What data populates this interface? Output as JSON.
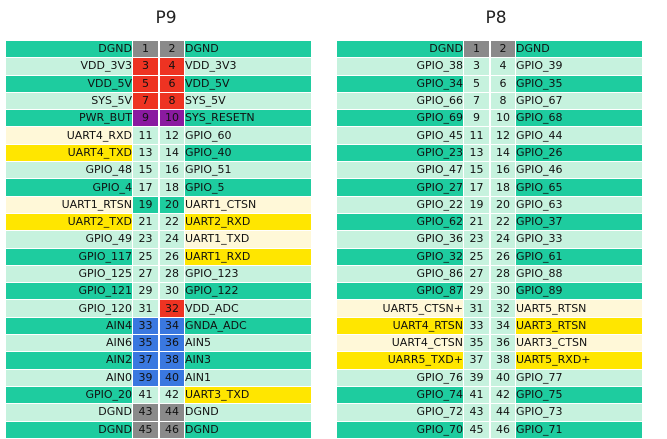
{
  "colors": {
    "teal": "#1ecc9f",
    "mint": "#c6f2de",
    "cream": "#fff8d8",
    "yellow": "#ffe600",
    "red": "#ee3322",
    "purple": "#8a1aa0",
    "blue": "#3a78e0",
    "gray": "#8a8a8a"
  },
  "p9": {
    "title": "P9",
    "rows": [
      {
        "l": "DGND",
        "a": "1",
        "b": "2",
        "r": "DGND",
        "lc": "teal",
        "ac": "gray",
        "bc": "gray",
        "rc": "teal"
      },
      {
        "l": "VDD_3V3",
        "a": "3",
        "b": "4",
        "r": "VDD_3V3",
        "lc": "mint",
        "ac": "red",
        "bc": "red",
        "rc": "mint"
      },
      {
        "l": "VDD_5V",
        "a": "5",
        "b": "6",
        "r": "VDD_5V",
        "lc": "teal",
        "ac": "red",
        "bc": "red",
        "rc": "teal"
      },
      {
        "l": "SYS_5V",
        "a": "7",
        "b": "8",
        "r": "SYS_5V",
        "lc": "mint",
        "ac": "red",
        "bc": "red",
        "rc": "mint"
      },
      {
        "l": "PWR_BUT",
        "a": "9",
        "b": "10",
        "r": "SYS_RESETN",
        "lc": "teal",
        "ac": "purple",
        "bc": "purple",
        "rc": "teal"
      },
      {
        "l": "UART4_RXD",
        "a": "11",
        "b": "12",
        "r": "GPIO_60",
        "lc": "cream",
        "ac": "mint",
        "bc": "mint",
        "rc": "mint"
      },
      {
        "l": "UART4_TXD",
        "a": "13",
        "b": "14",
        "r": "GPIO_40",
        "lc": "yellow",
        "ac": "mint",
        "bc": "mint",
        "rc": "teal"
      },
      {
        "l": "GPIO_48",
        "a": "15",
        "b": "16",
        "r": "GPIO_51",
        "lc": "mint",
        "ac": "mint",
        "bc": "mint",
        "rc": "mint"
      },
      {
        "l": "GPIO_4",
        "a": "17",
        "b": "18",
        "r": "GPIO_5",
        "lc": "teal",
        "ac": "mint",
        "bc": "mint",
        "rc": "teal"
      },
      {
        "l": "UART1_RTSN",
        "a": "19",
        "b": "20",
        "r": "UART1_CTSN",
        "lc": "cream",
        "ac": "teal",
        "bc": "teal",
        "rc": "cream"
      },
      {
        "l": "UART2_TXD",
        "a": "21",
        "b": "22",
        "r": "UART2_RXD",
        "lc": "yellow",
        "ac": "mint",
        "bc": "mint",
        "rc": "yellow"
      },
      {
        "l": "GPIO_49",
        "a": "23",
        "b": "24",
        "r": "UART1_TXD",
        "lc": "mint",
        "ac": "mint",
        "bc": "mint",
        "rc": "cream"
      },
      {
        "l": "GPIO_117",
        "a": "25",
        "b": "26",
        "r": "UART1_RXD",
        "lc": "teal",
        "ac": "mint",
        "bc": "mint",
        "rc": "yellow"
      },
      {
        "l": "GPIO_125",
        "a": "27",
        "b": "28",
        "r": "GPIO_123",
        "lc": "mint",
        "ac": "mint",
        "bc": "mint",
        "rc": "mint"
      },
      {
        "l": "GPIO_121",
        "a": "29",
        "b": "30",
        "r": "GPIO_122",
        "lc": "teal",
        "ac": "mint",
        "bc": "mint",
        "rc": "teal"
      },
      {
        "l": "GPIO_120",
        "a": "31",
        "b": "32",
        "r": "VDD_ADC",
        "lc": "mint",
        "ac": "mint",
        "bc": "red",
        "rc": "mint"
      },
      {
        "l": "AIN4",
        "a": "33",
        "b": "34",
        "r": "GNDA_ADC",
        "lc": "teal",
        "ac": "blue",
        "bc": "blue",
        "rc": "teal"
      },
      {
        "l": "AIN6",
        "a": "35",
        "b": "36",
        "r": "AIN5",
        "lc": "mint",
        "ac": "blue",
        "bc": "blue",
        "rc": "mint"
      },
      {
        "l": "AIN2",
        "a": "37",
        "b": "38",
        "r": "AIN3",
        "lc": "teal",
        "ac": "blue",
        "bc": "blue",
        "rc": "teal"
      },
      {
        "l": "AIN0",
        "a": "39",
        "b": "40",
        "r": "AIN1",
        "lc": "mint",
        "ac": "blue",
        "bc": "blue",
        "rc": "mint"
      },
      {
        "l": "GPIO_20",
        "a": "41",
        "b": "42",
        "r": "UART3_TXD",
        "lc": "teal",
        "ac": "mint",
        "bc": "mint",
        "rc": "yellow"
      },
      {
        "l": "DGND",
        "a": "43",
        "b": "44",
        "r": "DGND",
        "lc": "mint",
        "ac": "gray",
        "bc": "gray",
        "rc": "mint"
      },
      {
        "l": "DGND",
        "a": "45",
        "b": "46",
        "r": "DGND",
        "lc": "teal",
        "ac": "gray",
        "bc": "gray",
        "rc": "teal"
      }
    ]
  },
  "p8": {
    "title": "P8",
    "rows": [
      {
        "l": "DGND",
        "a": "1",
        "b": "2",
        "r": "DGND",
        "lc": "teal",
        "ac": "gray",
        "bc": "gray",
        "rc": "teal"
      },
      {
        "l": "GPIO_38",
        "a": "3",
        "b": "4",
        "r": "GPIO_39",
        "lc": "mint",
        "ac": "mint",
        "bc": "mint",
        "rc": "mint"
      },
      {
        "l": "GPIO_34",
        "a": "5",
        "b": "6",
        "r": "GPIO_35",
        "lc": "teal",
        "ac": "mint",
        "bc": "mint",
        "rc": "teal"
      },
      {
        "l": "GPIO_66",
        "a": "7",
        "b": "8",
        "r": "GPIO_67",
        "lc": "mint",
        "ac": "mint",
        "bc": "mint",
        "rc": "mint"
      },
      {
        "l": "GPIO_69",
        "a": "9",
        "b": "10",
        "r": "GPIO_68",
        "lc": "teal",
        "ac": "mint",
        "bc": "mint",
        "rc": "teal"
      },
      {
        "l": "GPIO_45",
        "a": "11",
        "b": "12",
        "r": "GPIO_44",
        "lc": "mint",
        "ac": "mint",
        "bc": "mint",
        "rc": "mint"
      },
      {
        "l": "GPIO_23",
        "a": "13",
        "b": "14",
        "r": "GPIO_26",
        "lc": "teal",
        "ac": "mint",
        "bc": "mint",
        "rc": "teal"
      },
      {
        "l": "GPIO_47",
        "a": "15",
        "b": "16",
        "r": "GPIO_46",
        "lc": "mint",
        "ac": "mint",
        "bc": "mint",
        "rc": "mint"
      },
      {
        "l": "GPIO_27",
        "a": "17",
        "b": "18",
        "r": "GPIO_65",
        "lc": "teal",
        "ac": "mint",
        "bc": "mint",
        "rc": "teal"
      },
      {
        "l": "GPIO_22",
        "a": "19",
        "b": "20",
        "r": "GPIO_63",
        "lc": "mint",
        "ac": "mint",
        "bc": "mint",
        "rc": "mint"
      },
      {
        "l": "GPIO_62",
        "a": "21",
        "b": "22",
        "r": "GPIO_37",
        "lc": "teal",
        "ac": "mint",
        "bc": "mint",
        "rc": "teal"
      },
      {
        "l": "GPIO_36",
        "a": "23",
        "b": "24",
        "r": "GPIO_33",
        "lc": "mint",
        "ac": "mint",
        "bc": "mint",
        "rc": "mint"
      },
      {
        "l": "GPIO_32",
        "a": "25",
        "b": "26",
        "r": "GPIO_61",
        "lc": "teal",
        "ac": "mint",
        "bc": "mint",
        "rc": "teal"
      },
      {
        "l": "GPIO_86",
        "a": "27",
        "b": "28",
        "r": "GPIO_88",
        "lc": "mint",
        "ac": "mint",
        "bc": "mint",
        "rc": "mint"
      },
      {
        "l": "GPIO_87",
        "a": "29",
        "b": "30",
        "r": "GPIO_89",
        "lc": "teal",
        "ac": "mint",
        "bc": "mint",
        "rc": "teal"
      },
      {
        "l": "UART5_CTSN+",
        "a": "31",
        "b": "32",
        "r": "UART5_RTSN",
        "lc": "cream",
        "ac": "mint",
        "bc": "mint",
        "rc": "cream"
      },
      {
        "l": "UART4_RTSN",
        "a": "33",
        "b": "34",
        "r": "UART3_RTSN",
        "lc": "yellow",
        "ac": "mint",
        "bc": "mint",
        "rc": "yellow"
      },
      {
        "l": "UART4_CTSN",
        "a": "35",
        "b": "36",
        "r": "UART3_CTSN",
        "lc": "cream",
        "ac": "mint",
        "bc": "mint",
        "rc": "cream"
      },
      {
        "l": "UARR5_TXD+",
        "a": "37",
        "b": "38",
        "r": "UART5_RXD+",
        "lc": "yellow",
        "ac": "mint",
        "bc": "mint",
        "rc": "yellow"
      },
      {
        "l": "GPIO_76",
        "a": "39",
        "b": "40",
        "r": "GPIO_77",
        "lc": "mint",
        "ac": "mint",
        "bc": "mint",
        "rc": "mint"
      },
      {
        "l": "GPIO_74",
        "a": "41",
        "b": "42",
        "r": "GPIO_75",
        "lc": "teal",
        "ac": "mint",
        "bc": "mint",
        "rc": "teal"
      },
      {
        "l": "GPIO_72",
        "a": "43",
        "b": "44",
        "r": "GPIO_73",
        "lc": "mint",
        "ac": "mint",
        "bc": "mint",
        "rc": "mint"
      },
      {
        "l": "GPIO_70",
        "a": "45",
        "b": "46",
        "r": "GPIO_71",
        "lc": "teal",
        "ac": "mint",
        "bc": "mint",
        "rc": "teal"
      }
    ]
  }
}
